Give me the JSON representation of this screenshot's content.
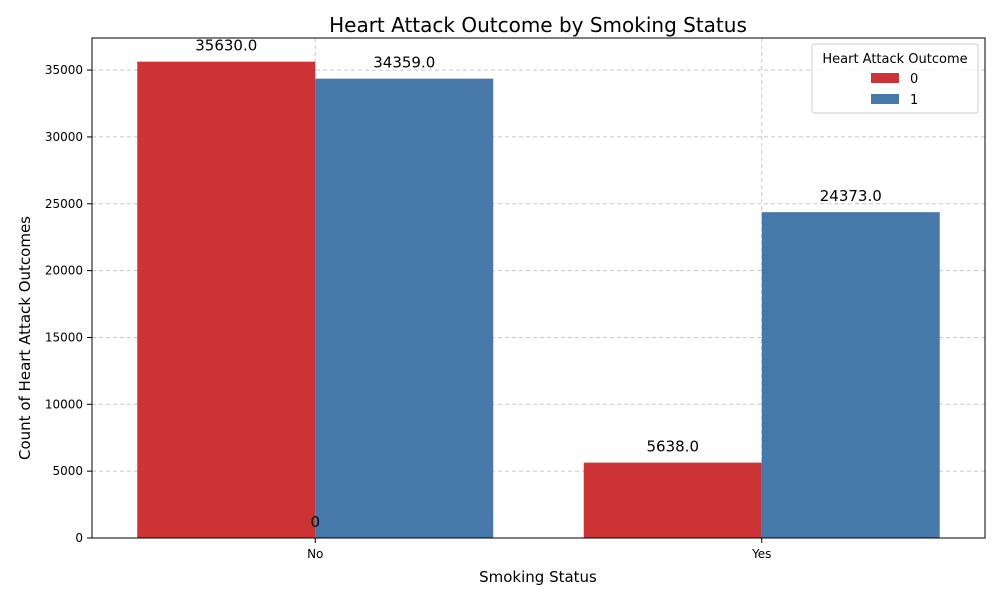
{
  "chart_data": {
    "type": "bar",
    "title": "Heart Attack Outcome by Smoking Status",
    "xlabel": "Smoking Status",
    "ylabel": "Count of Heart Attack Outcomes",
    "categories": [
      "No",
      "Yes"
    ],
    "series": [
      {
        "name": "0",
        "values": [
          35630,
          5638
        ],
        "color": "#cd3235"
      },
      {
        "name": "1",
        "values": [
          34359,
          24373
        ],
        "color": "#4679aa"
      }
    ],
    "data_labels": [
      [
        "35630.0",
        "5638.0"
      ],
      [
        "34359.0",
        "24373.0"
      ]
    ],
    "extra_label": "0",
    "ylim": [
      0,
      37400
    ],
    "yticks": [
      0,
      5000,
      10000,
      15000,
      20000,
      25000,
      30000,
      35000
    ],
    "grid": true,
    "legend": {
      "title": "Heart Attack Outcome",
      "position": "top-right"
    }
  }
}
